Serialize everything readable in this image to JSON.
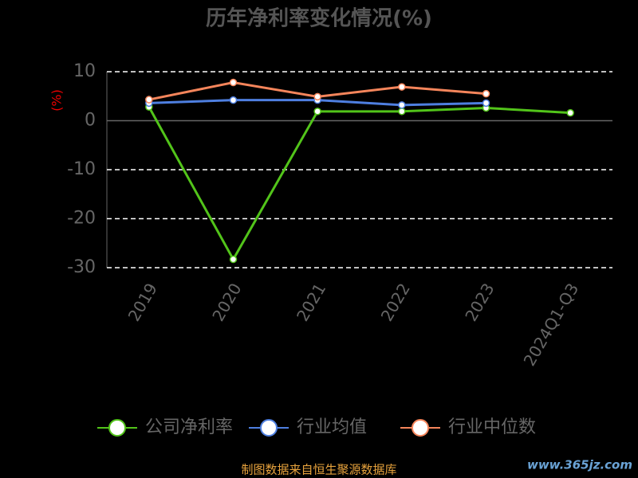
{
  "chart_data": {
    "type": "line",
    "title": "历年净利率变化情况(%)",
    "y_label": "(%)",
    "categories": [
      "2019",
      "2020",
      "2021",
      "2022",
      "2023",
      "2024Q1-Q3"
    ],
    "series": [
      {
        "name": "公司净利率",
        "color": "#52c41a",
        "values": [
          2.8,
          -28.3,
          1.9,
          1.9,
          2.6,
          1.6
        ]
      },
      {
        "name": "行业均值",
        "color": "#4e7fe0",
        "values": [
          3.6,
          4.2,
          4.2,
          3.2,
          3.6,
          null
        ]
      },
      {
        "name": "行业中位数",
        "color": "#f5855b",
        "values": [
          4.3,
          7.8,
          4.9,
          6.9,
          5.5,
          null
        ]
      }
    ],
    "ylim": [
      -30,
      10
    ],
    "yticks": [
      -30,
      -20,
      -10,
      0,
      10
    ],
    "grid": true,
    "source": "制图数据来自恒生聚源数据库",
    "watermark": "www.365jz.com"
  }
}
